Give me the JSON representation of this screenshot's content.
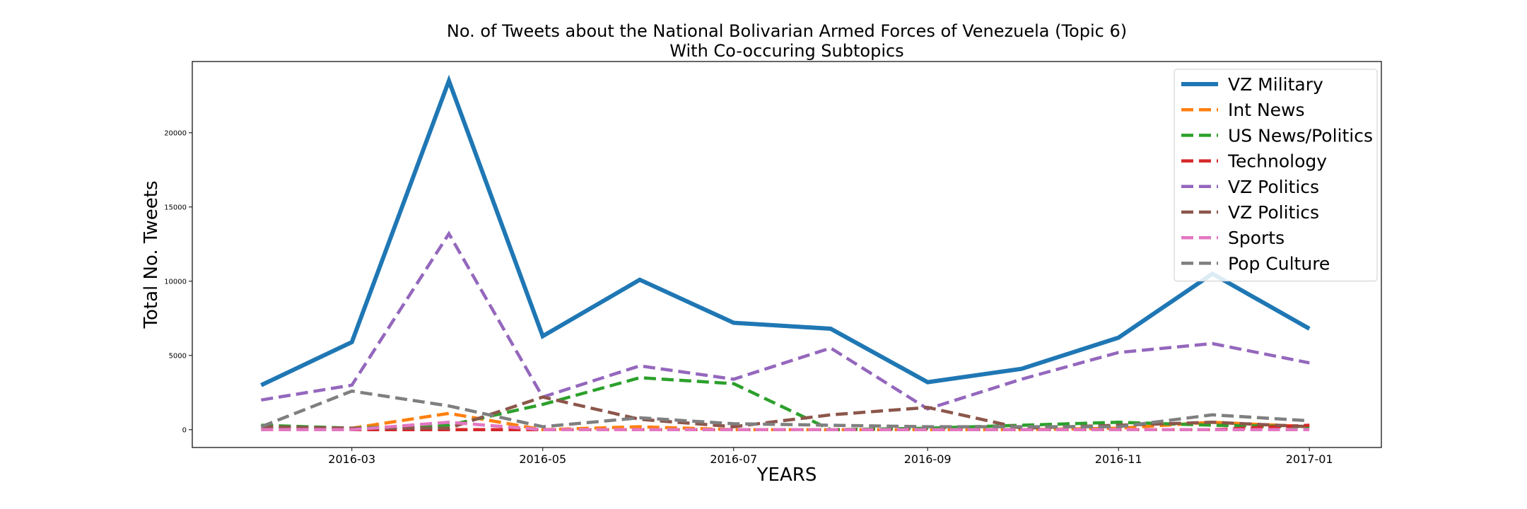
{
  "chart_data": {
    "type": "line",
    "title": "No. of Tweets about the National Bolivarian Armed Forces of Venezuela (Topic 6)",
    "subtitle": "With Co-occuring Subtopics",
    "xlabel": "YEARS",
    "ylabel": "Total No. Tweets",
    "x": [
      "2016-02-01",
      "2016-03-01",
      "2016-04-01",
      "2016-05-01",
      "2016-06-01",
      "2016-07-01",
      "2016-08-01",
      "2016-09-01",
      "2016-10-01",
      "2016-11-01",
      "2016-12-01",
      "2017-01-01"
    ],
    "xlim": [
      "2016-01-10",
      "2017-01-24"
    ],
    "ylim": [
      -1200,
      24800
    ],
    "xticks": [
      "2016-03",
      "2016-05",
      "2016-07",
      "2016-09",
      "2016-11",
      "2017-01"
    ],
    "yticks": [
      0,
      5000,
      10000,
      15000,
      20000
    ],
    "grid": false,
    "legend_position": "top-right",
    "series": [
      {
        "name": "VZ Military",
        "color": "#1f77b4",
        "style": "solid",
        "values": [
          3000,
          5900,
          23500,
          6300,
          10100,
          7200,
          6800,
          3200,
          4100,
          6200,
          10500,
          6800
        ]
      },
      {
        "name": "Int News",
        "color": "#ff7f0e",
        "style": "dashed",
        "values": [
          200,
          100,
          1100,
          0,
          200,
          0,
          0,
          0,
          0,
          100,
          500,
          200
        ]
      },
      {
        "name": "US News/Politics",
        "color": "#2ca02c",
        "style": "dashed",
        "values": [
          300,
          100,
          300,
          1700,
          3500,
          3100,
          0,
          100,
          300,
          500,
          300,
          200
        ]
      },
      {
        "name": "Technology",
        "color": "#d62728",
        "style": "dashed",
        "values": [
          0,
          0,
          0,
          0,
          0,
          0,
          0,
          0,
          0,
          0,
          0,
          300
        ]
      },
      {
        "name": "VZ Politics",
        "color": "#9467bd",
        "style": "dashed",
        "values": [
          2000,
          3000,
          13200,
          2200,
          4300,
          3400,
          5500,
          1400,
          3400,
          5200,
          5800,
          4500
        ]
      },
      {
        "name": "VZ Politics",
        "color": "#8c564b",
        "style": "dashed",
        "values": [
          200,
          100,
          100,
          2200,
          700,
          200,
          1000,
          1500,
          100,
          300,
          500,
          200
        ]
      },
      {
        "name": "Sports",
        "color": "#e377c2",
        "style": "dashed",
        "values": [
          0,
          0,
          500,
          0,
          0,
          0,
          0,
          0,
          0,
          0,
          0,
          0
        ]
      },
      {
        "name": "Pop Culture",
        "color": "#7f7f7f",
        "style": "dashed",
        "values": [
          200,
          2600,
          1600,
          200,
          800,
          400,
          300,
          200,
          200,
          200,
          1000,
          600
        ]
      }
    ]
  }
}
